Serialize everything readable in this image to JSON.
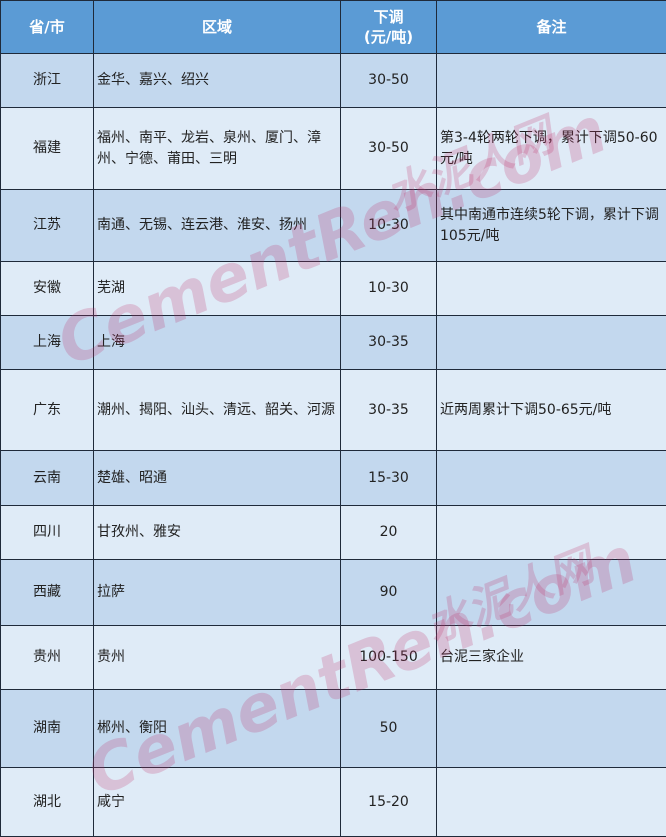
{
  "table": {
    "headers": [
      "省/市",
      "区域",
      "下调\n(元/吨)",
      "备注"
    ],
    "header_unit": "(元/吨)",
    "rows": [
      {
        "province": "浙江",
        "region": "金华、嘉兴、绍兴",
        "cut": "30-50",
        "note": ""
      },
      {
        "province": "福建",
        "region": "福州、南平、龙岩、泉州、厦门、漳州、宁德、莆田、三明",
        "cut": "30-50",
        "note": "第3-4轮两轮下调，累计下调50-60元/吨"
      },
      {
        "province": "江苏",
        "region": "南通、无锡、连云港、淮安、扬州",
        "cut": "10-30",
        "note": "其中南通市连续5轮下调，累计下调105元/吨"
      },
      {
        "province": "安徽",
        "region": "芜湖",
        "cut": "10-30",
        "note": ""
      },
      {
        "province": "上海",
        "region": "上海",
        "cut": "30-35",
        "note": ""
      },
      {
        "province": "广东",
        "region": "潮州、揭阳、汕头、清远、韶关、河源",
        "cut": "30-35",
        "note": "近两周累计下调50-65元/吨"
      },
      {
        "province": "云南",
        "region": "楚雄、昭通",
        "cut": "15-30",
        "note": ""
      },
      {
        "province": "四川",
        "region": "甘孜州、雅安",
        "cut": "20",
        "note": ""
      },
      {
        "province": "西藏",
        "region": "拉萨",
        "cut": "90",
        "note": ""
      },
      {
        "province": "贵州",
        "region": "贵州",
        "cut": "100-150",
        "note": "台泥三家企业"
      },
      {
        "province": "湖南",
        "region": "郴州、衡阳",
        "cut": "50",
        "note": ""
      },
      {
        "province": "湖北",
        "region": "咸宁",
        "cut": "15-20",
        "note": ""
      }
    ]
  },
  "watermark": {
    "latin": "CementRen.com",
    "chinese": "水泥人网"
  },
  "colors": {
    "header": "#5b9bd5",
    "row_dark": "#c3d8ee",
    "row_light": "#dfebf7"
  }
}
